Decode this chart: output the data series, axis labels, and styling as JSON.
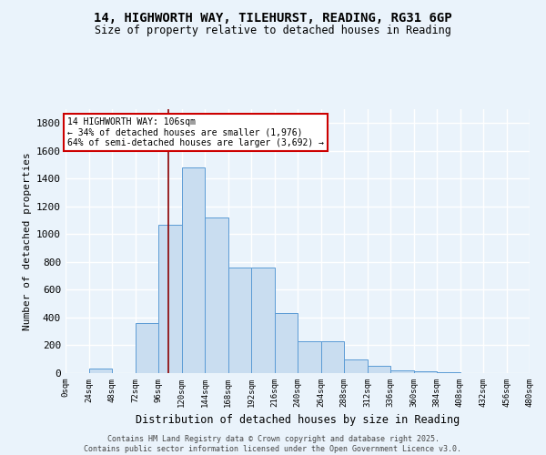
{
  "title_line1": "14, HIGHWORTH WAY, TILEHURST, READING, RG31 6GP",
  "title_line2": "Size of property relative to detached houses in Reading",
  "xlabel": "Distribution of detached houses by size in Reading",
  "ylabel": "Number of detached properties",
  "bin_edges": [
    0,
    24,
    48,
    72,
    96,
    120,
    144,
    168,
    192,
    216,
    240,
    264,
    288,
    312,
    336,
    360,
    384,
    408,
    432,
    456,
    480
  ],
  "bin_counts": [
    0,
    30,
    0,
    360,
    1065,
    1480,
    1120,
    760,
    760,
    430,
    230,
    230,
    100,
    50,
    20,
    10,
    5,
    2,
    1,
    1
  ],
  "property_size": 106,
  "bar_facecolor": "#c9ddf0",
  "bar_edgecolor": "#5b9bd5",
  "line_color": "#8b0000",
  "annotation_text": "14 HIGHWORTH WAY: 106sqm\n← 34% of detached houses are smaller (1,976)\n64% of semi-detached houses are larger (3,692) →",
  "annotation_box_edgecolor": "#cc0000",
  "annotation_box_facecolor": "white",
  "background_color": "#eaf3fb",
  "grid_color": "#ffffff",
  "footer_line1": "Contains HM Land Registry data © Crown copyright and database right 2025.",
  "footer_line2": "Contains public sector information licensed under the Open Government Licence v3.0.",
  "ylim": [
    0,
    1900
  ],
  "yticks": [
    0,
    200,
    400,
    600,
    800,
    1000,
    1200,
    1400,
    1600,
    1800
  ],
  "tick_labels": [
    "0sqm",
    "24sqm",
    "48sqm",
    "72sqm",
    "96sqm",
    "120sqm",
    "144sqm",
    "168sqm",
    "192sqm",
    "216sqm",
    "240sqm",
    "264sqm",
    "288sqm",
    "312sqm",
    "336sqm",
    "360sqm",
    "384sqm",
    "408sqm",
    "432sqm",
    "456sqm",
    "480sqm"
  ]
}
